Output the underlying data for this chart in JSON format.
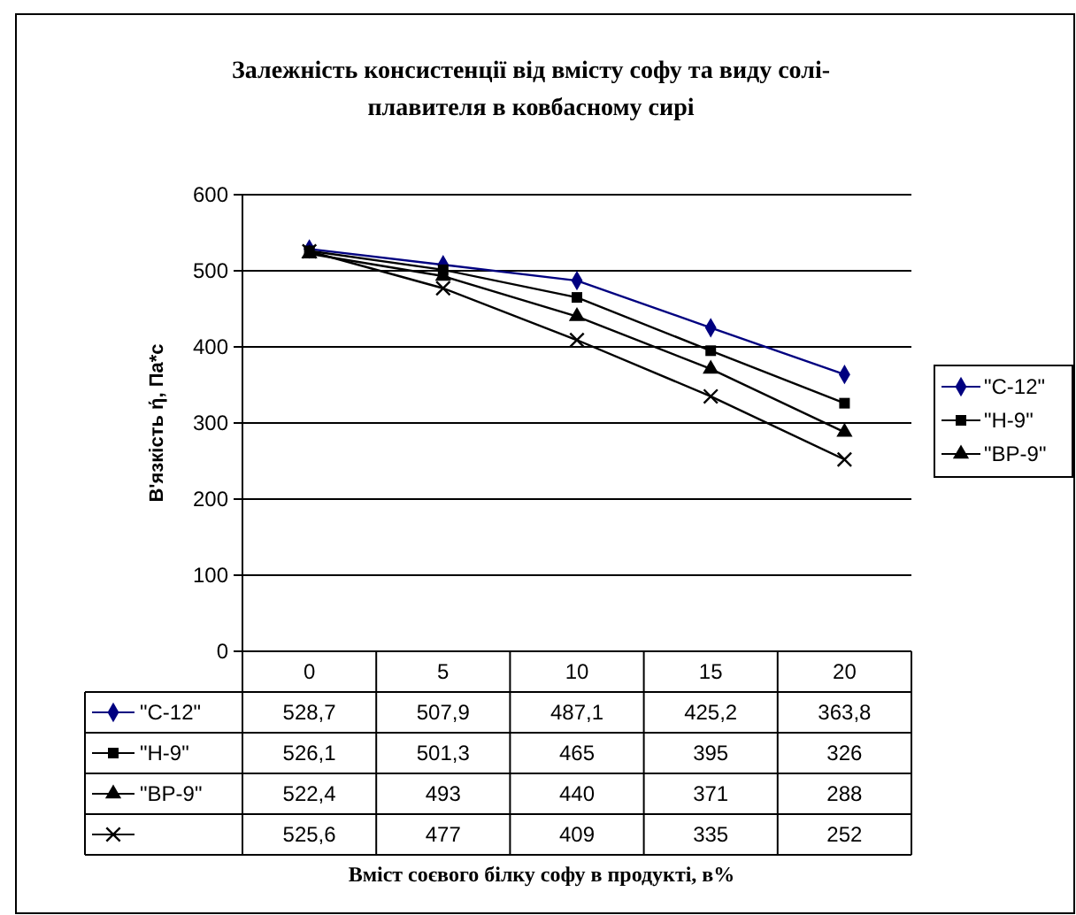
{
  "chart_data": {
    "type": "line",
    "title": "Залежність консистенції від вмісту софу та виду солі-плавителя в ковбасному сирі",
    "annotations": [
      "Вміст соєвого білку софу в продукті, в%"
    ],
    "ylabel": "В'язкість ή, Па*с",
    "categories": [
      "0",
      "5",
      "10",
      "15",
      "20"
    ],
    "series": [
      {
        "name": "\"C-12\"",
        "color": "#000080",
        "marker": "diamond",
        "values": [
          528.7,
          507.9,
          487.1,
          425.2,
          363.8
        ],
        "value_labels": [
          "528,7",
          "507,9",
          "487,1",
          "425,2",
          "363,8"
        ]
      },
      {
        "name": "\"H-9\"",
        "color": "#000000",
        "marker": "square",
        "values": [
          526.1,
          501.3,
          465,
          395,
          326
        ],
        "value_labels": [
          "526,1",
          "501,3",
          "465",
          "395",
          "326"
        ]
      },
      {
        "name": "\"BP-9\"",
        "color": "#000000",
        "marker": "triangle",
        "values": [
          522.4,
          493,
          440,
          371,
          288
        ],
        "value_labels": [
          "522,4",
          "493",
          "440",
          "371",
          "288"
        ]
      },
      {
        "color": "#000000",
        "marker": "cross",
        "values": [
          525.6,
          477,
          409,
          335,
          252
        ],
        "value_labels": [
          "525,6",
          "477",
          "409",
          "335",
          "252"
        ]
      }
    ],
    "ylim": [
      0,
      600
    ],
    "yticks": [
      0,
      100,
      200,
      300,
      400,
      500,
      600
    ],
    "grid": "y",
    "legend": "right"
  }
}
